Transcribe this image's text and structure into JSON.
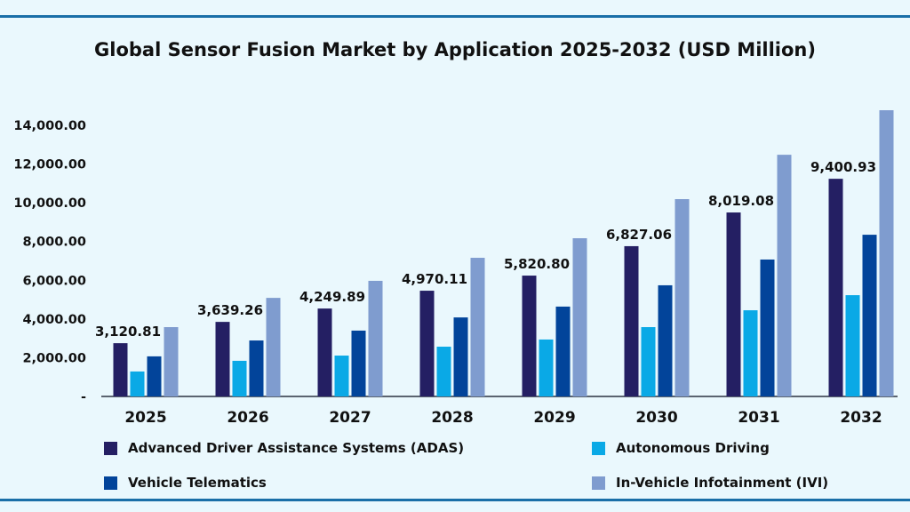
{
  "chart_data": {
    "type": "bar",
    "title": "Global Sensor Fusion Market by Application 2025-2032 (USD Million)",
    "categories": [
      "2025",
      "2026",
      "2027",
      "2028",
      "2029",
      "2030",
      "2031",
      "2032"
    ],
    "ylim": [
      0,
      14000
    ],
    "yticks": [
      0,
      2000,
      4000,
      6000,
      8000,
      10000,
      12000,
      14000
    ],
    "ytick_labels": [
      "-",
      "2,000.00",
      "4,000.00",
      "6,000.00",
      "8,000.00",
      "10,000.00",
      "12,000.00",
      "14,000.00"
    ],
    "grid": false,
    "legend_placement": "bottom",
    "series": [
      {
        "name": "Advanced Driver Assistance Systems (ADAS)",
        "color": "#241f63",
        "values": [
          2750,
          3850,
          4540,
          5460,
          6240,
          7760,
          9500,
          11240
        ]
      },
      {
        "name": "Autonomous Driving",
        "color": "#0aa9e6",
        "values": [
          1290,
          1840,
          2110,
          2570,
          2940,
          3580,
          4450,
          5230
        ]
      },
      {
        "name": "Vehicle Telematics",
        "color": "#02449a",
        "values": [
          2070,
          2890,
          3400,
          4080,
          4640,
          5740,
          7070,
          8350
        ]
      },
      {
        "name": "In-Vehicle Infotainment (IVI)",
        "color": "#7f9ccf",
        "values": [
          3580,
          5090,
          5970,
          7160,
          8170,
          10190,
          12480,
          14780
        ]
      }
    ],
    "annotations": [
      "3,120.81",
      "3,639.26",
      "4,249.89",
      "4,970.11",
      "5,820.80",
      "6,827.06",
      "8,019.08",
      "9,400.93"
    ]
  }
}
